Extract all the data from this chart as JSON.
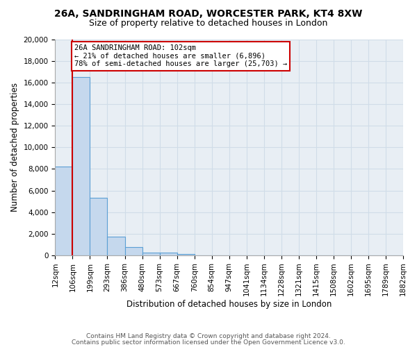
{
  "title1": "26A, SANDRINGHAM ROAD, WORCESTER PARK, KT4 8XW",
  "title2": "Size of property relative to detached houses in London",
  "xlabel": "Distribution of detached houses by size in London",
  "ylabel": "Number of detached properties",
  "bar_values": [
    8200,
    16500,
    5300,
    1750,
    800,
    250,
    250,
    150,
    0,
    0,
    0,
    0,
    0,
    0,
    0,
    0,
    0,
    0,
    0,
    0
  ],
  "bar_color": "#c5d8ed",
  "bar_edge_color": "#5a9fd4",
  "xlabels": [
    "12sqm",
    "106sqm",
    "199sqm",
    "293sqm",
    "386sqm",
    "480sqm",
    "573sqm",
    "667sqm",
    "760sqm",
    "854sqm",
    "947sqm",
    "1041sqm",
    "1134sqm",
    "1228sqm",
    "1321sqm",
    "1415sqm",
    "1508sqm",
    "1602sqm",
    "1695sqm",
    "1789sqm",
    "1882sqm"
  ],
  "ylim": [
    0,
    20000
  ],
  "yticks": [
    0,
    2000,
    4000,
    6000,
    8000,
    10000,
    12000,
    14000,
    16000,
    18000,
    20000
  ],
  "vline_x": 1.0,
  "vline_color": "#cc0000",
  "annotation_text": "26A SANDRINGHAM ROAD: 102sqm\n← 21% of detached houses are smaller (6,896)\n78% of semi-detached houses are larger (25,703) →",
  "annotation_box_color": "#ffffff",
  "annotation_box_edge_color": "#cc0000",
  "grid_color": "#d0dce8",
  "background_color": "#e8eef4",
  "footer1": "Contains HM Land Registry data © Crown copyright and database right 2024.",
  "footer2": "Contains public sector information licensed under the Open Government Licence v3.0.",
  "title1_fontsize": 10,
  "title2_fontsize": 9,
  "xlabel_fontsize": 8.5,
  "ylabel_fontsize": 8.5,
  "tick_fontsize": 7.5,
  "footer_fontsize": 6.5
}
